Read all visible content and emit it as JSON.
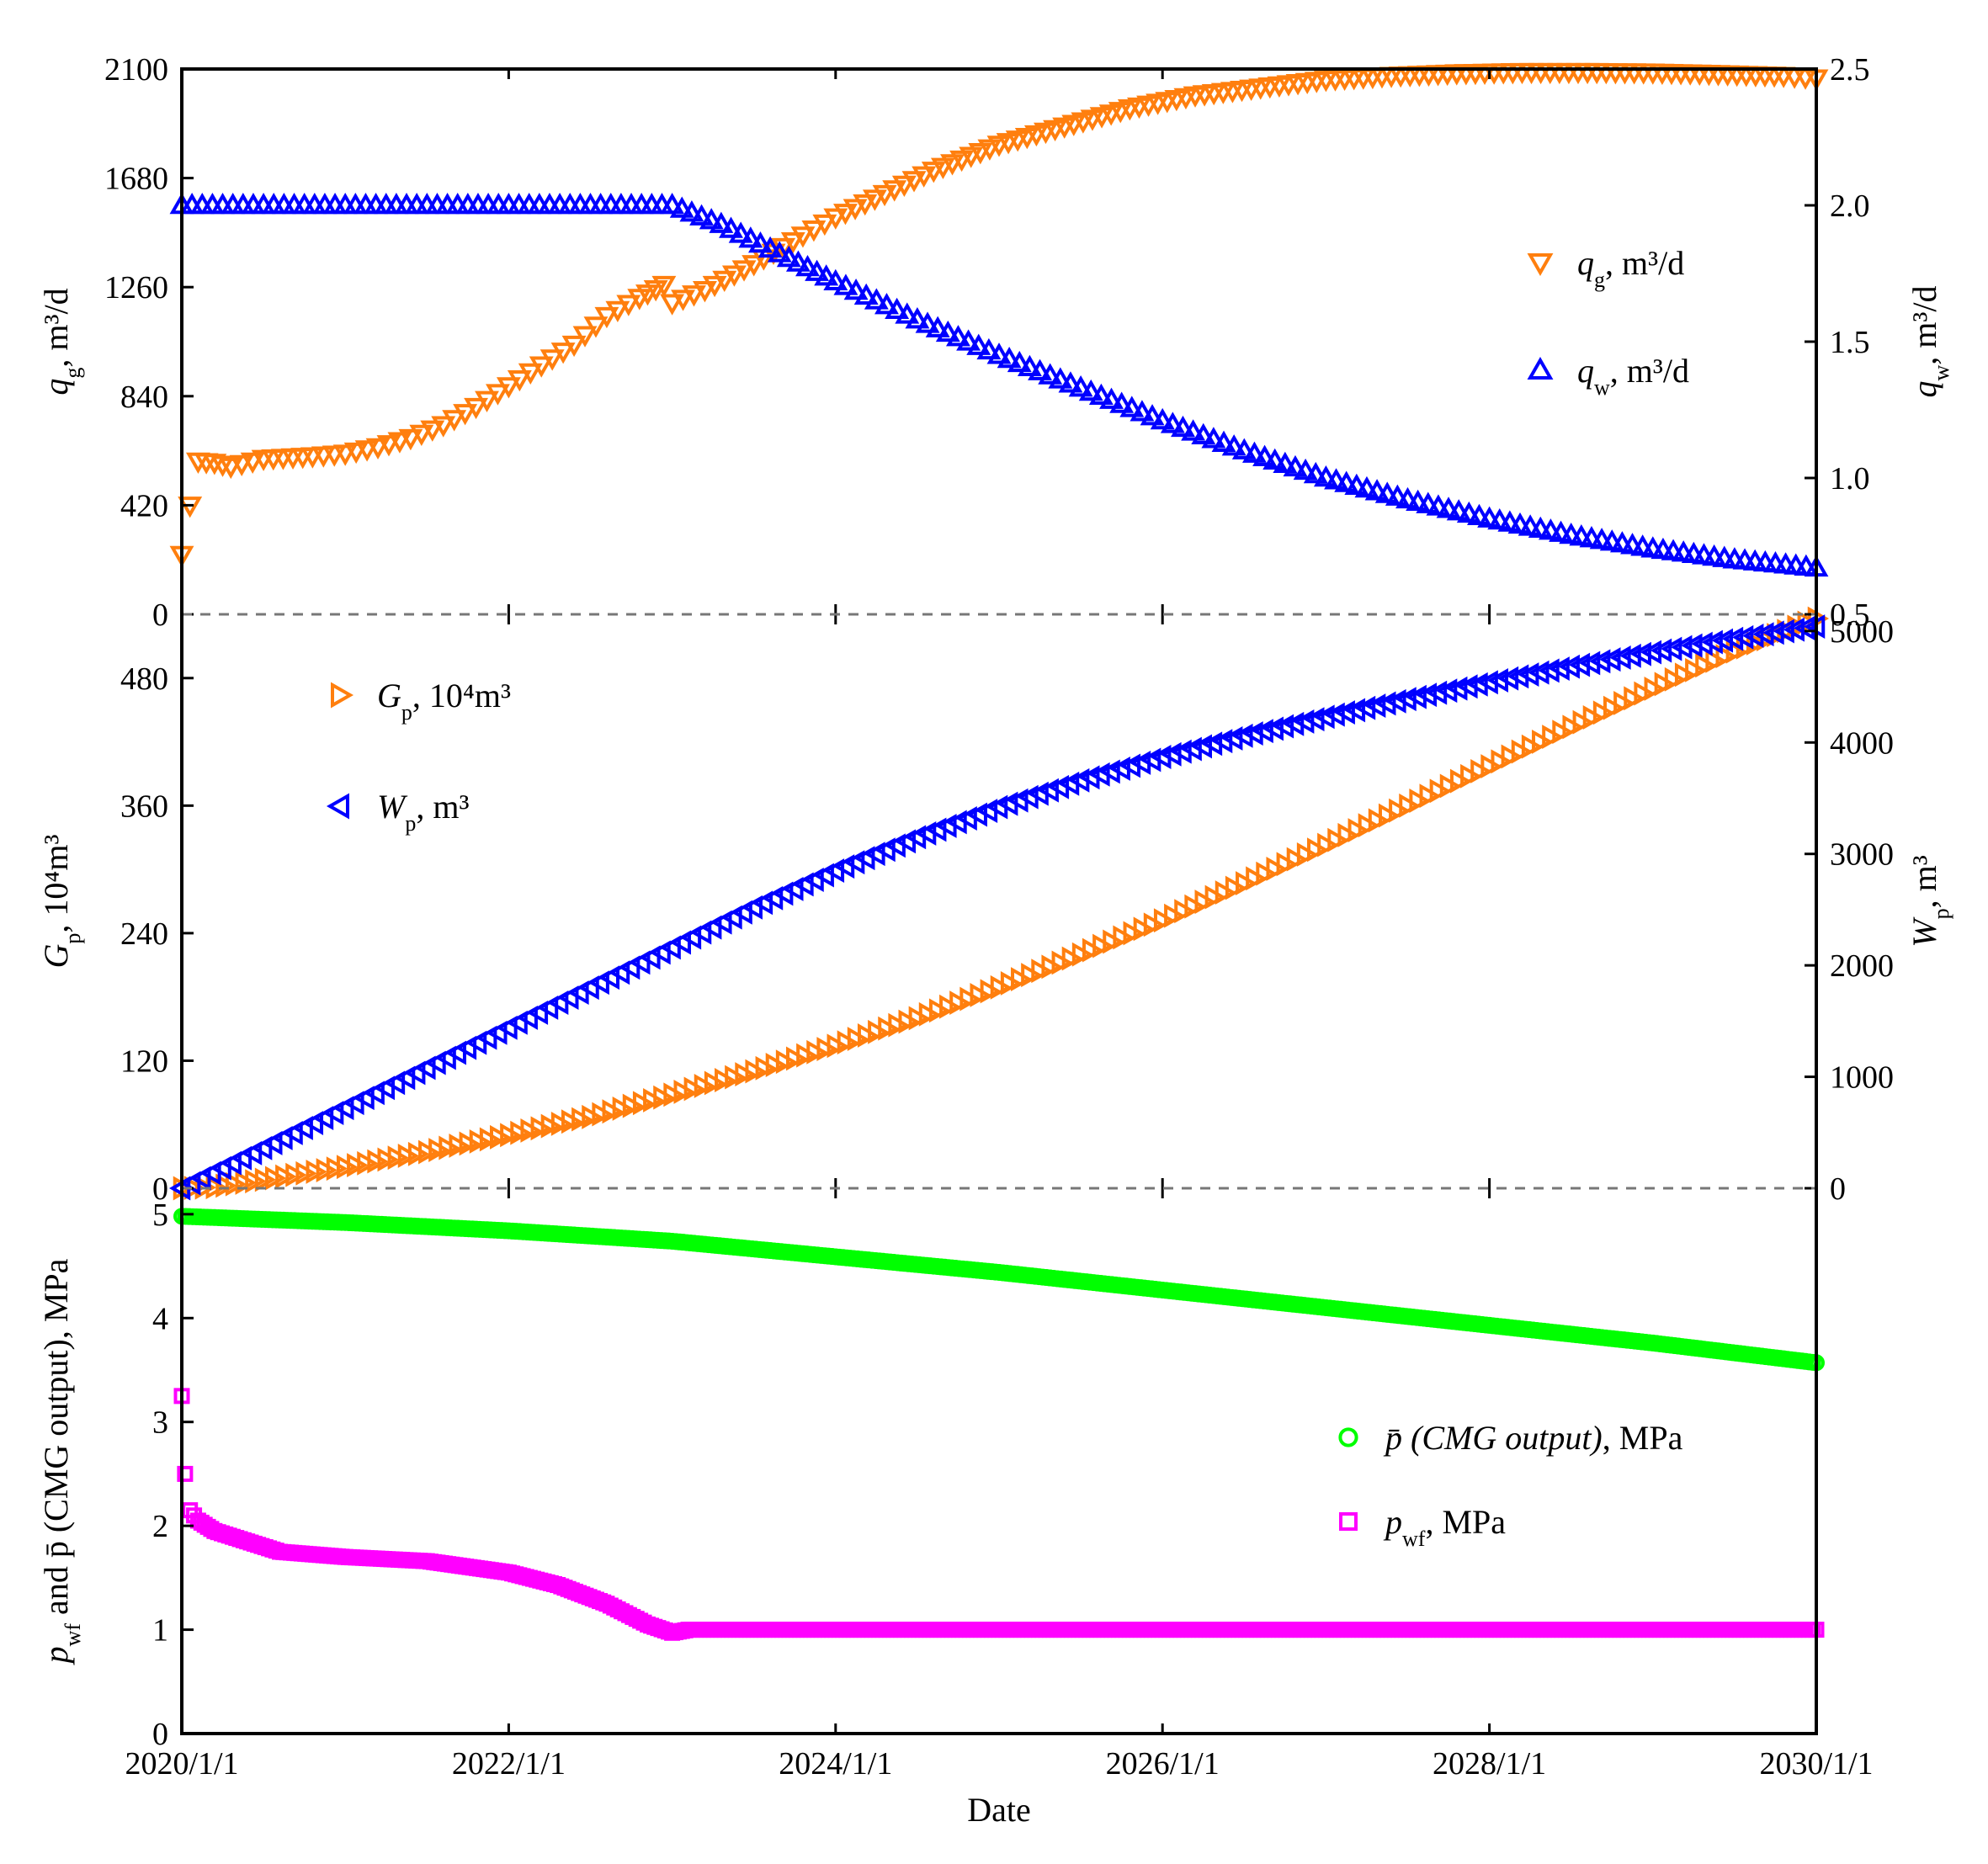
{
  "chart_data": [
    {
      "panel": "top",
      "type": "scatter",
      "left_axis": {
        "label": "q",
        "sub": "g",
        "unit": ", m³/d",
        "ticks": [
          "0",
          "420",
          "840",
          "1260",
          "1680",
          "2100"
        ],
        "ylim": [
          0,
          2100
        ]
      },
      "right_axis": {
        "label": "q",
        "sub": "w",
        "unit": ", m³/d",
        "ticks": [
          "0.5",
          "1.0",
          "1.5",
          "2.0",
          "2.5"
        ],
        "ylim": [
          0.5,
          2.5
        ]
      },
      "legend_position": "right",
      "series": [
        {
          "name": "q",
          "sub": "g",
          "unit": ", m³/d",
          "axis": "left",
          "marker": "triangle-down",
          "color": "#ff7f0e",
          "x": [
            0,
            0.05,
            0.1,
            0.2,
            0.3,
            0.5,
            0.8,
            1.0,
            1.2,
            1.4,
            1.6,
            1.8,
            2.0,
            2.2,
            2.4,
            2.6,
            2.8,
            2.95,
            3.0,
            3.2,
            3.5,
            3.8,
            4.0,
            4.3,
            4.6,
            5.0,
            5.4,
            5.8,
            6.2,
            6.6,
            7.0,
            7.4,
            7.8,
            8.2,
            8.6,
            9.0,
            9.4,
            9.8,
            10.0
          ],
          "values": [
            230,
            420,
            590,
            585,
            570,
            600,
            610,
            620,
            645,
            680,
            730,
            800,
            880,
            960,
            1040,
            1150,
            1220,
            1270,
            1200,
            1250,
            1350,
            1460,
            1530,
            1620,
            1710,
            1810,
            1880,
            1950,
            2000,
            2030,
            2060,
            2075,
            2085,
            2090,
            2090,
            2088,
            2082,
            2075,
            2065
          ]
        },
        {
          "name": "q",
          "sub": "w",
          "unit": ", m³/d",
          "axis": "right",
          "marker": "triangle-up",
          "color": "#0000ff",
          "x": [
            0,
            0.5,
            1.0,
            1.5,
            2.0,
            2.5,
            3.0,
            3.3,
            3.6,
            4.0,
            4.5,
            5.0,
            5.5,
            6.0,
            6.5,
            7.0,
            7.5,
            8.0,
            8.5,
            9.0,
            9.5,
            10.0
          ],
          "values": [
            2.0,
            2.0,
            2.0,
            2.0,
            2.0,
            2.0,
            2.0,
            1.93,
            1.84,
            1.72,
            1.58,
            1.45,
            1.33,
            1.21,
            1.1,
            1.0,
            0.92,
            0.85,
            0.79,
            0.74,
            0.7,
            0.67
          ]
        }
      ]
    },
    {
      "panel": "middle",
      "type": "scatter",
      "left_axis": {
        "label": "G",
        "sub": "p",
        "unit": ", 10⁴m³",
        "ticks": [
          "0",
          "120",
          "240",
          "360",
          "480"
        ],
        "ylim": [
          0,
          540
        ]
      },
      "right_axis": {
        "label": "W",
        "sub": "p",
        "unit": ", m³",
        "ticks": [
          "0",
          "1000",
          "2000",
          "3000",
          "4000",
          "5000"
        ],
        "ylim": [
          0,
          5150
        ]
      },
      "legend_position": "top-left",
      "series": [
        {
          "name": "G",
          "sub": "p",
          "unit": ", 10⁴m³",
          "axis": "left",
          "marker": "triangle-right",
          "color": "#ff7f0e",
          "x": [
            0,
            0.2,
            0.5,
            1.0,
            1.5,
            2.0,
            2.5,
            3.0,
            3.5,
            4.0,
            4.5,
            5.0,
            5.5,
            6.0,
            6.5,
            7.0,
            7.5,
            8.0,
            8.5,
            9.0,
            9.5,
            10.0
          ],
          "values": [
            0,
            1,
            8,
            20,
            34,
            50,
            67,
            88,
            110,
            134,
            160,
            189,
            220,
            252,
            287,
            323,
            360,
            397,
            434,
            470,
            505,
            536
          ]
        },
        {
          "name": "W",
          "sub": "p",
          "unit": ", m³",
          "axis": "right",
          "marker": "triangle-left",
          "color": "#0000ff",
          "x": [
            0,
            0.5,
            1.0,
            1.5,
            2.0,
            2.5,
            3.0,
            3.5,
            4.0,
            4.5,
            5.0,
            5.5,
            6.0,
            6.5,
            7.0,
            7.5,
            8.0,
            8.5,
            9.0,
            9.5,
            10.0
          ],
          "values": [
            0,
            360,
            720,
            1080,
            1440,
            1800,
            2160,
            2520,
            2850,
            3150,
            3420,
            3660,
            3870,
            4060,
            4230,
            4390,
            4540,
            4680,
            4810,
            4930,
            5040
          ]
        }
      ]
    },
    {
      "panel": "bottom",
      "type": "scatter",
      "left_axis": {
        "label": "p",
        "sub": "wf",
        "unit": " and p̄ (CMG output), MPa",
        "ticks": [
          "0",
          "1",
          "2",
          "3",
          "4",
          "5"
        ],
        "ylim": [
          0,
          5.25
        ]
      },
      "xlabel": "Date",
      "xticks": [
        "2020/1/1",
        "2022/1/1",
        "2024/1/1",
        "2026/1/1",
        "2028/1/1",
        "2030/1/1"
      ],
      "xlim": [
        0,
        10
      ],
      "legend_position": "right",
      "series": [
        {
          "name": "p̄ (CMG output)",
          "unit": ", MPa",
          "axis": "left",
          "marker": "circle",
          "color": "#00ff00",
          "x": [
            0,
            1,
            2,
            3,
            4,
            5,
            6,
            7,
            8,
            9,
            10
          ],
          "values": [
            4.98,
            4.92,
            4.84,
            4.74,
            4.59,
            4.44,
            4.27,
            4.1,
            3.93,
            3.76,
            3.57
          ]
        },
        {
          "name": "p",
          "sub": "wf",
          "unit": ", MPa",
          "axis": "left",
          "marker": "square",
          "color": "#ff00ff",
          "x": [
            0,
            0.02,
            0.05,
            0.1,
            0.2,
            0.4,
            0.6,
            1.0,
            1.5,
            2.0,
            2.3,
            2.6,
            2.85,
            3.0,
            3.1,
            3.5,
            4,
            5,
            6,
            7,
            8,
            9,
            10
          ],
          "values": [
            3.25,
            2.5,
            2.15,
            2.05,
            1.95,
            1.85,
            1.75,
            1.7,
            1.66,
            1.55,
            1.43,
            1.25,
            1.05,
            0.97,
            1.0,
            1.0,
            1.0,
            1.0,
            1.0,
            1.0,
            1.0,
            1.0,
            1.0
          ]
        }
      ]
    }
  ]
}
